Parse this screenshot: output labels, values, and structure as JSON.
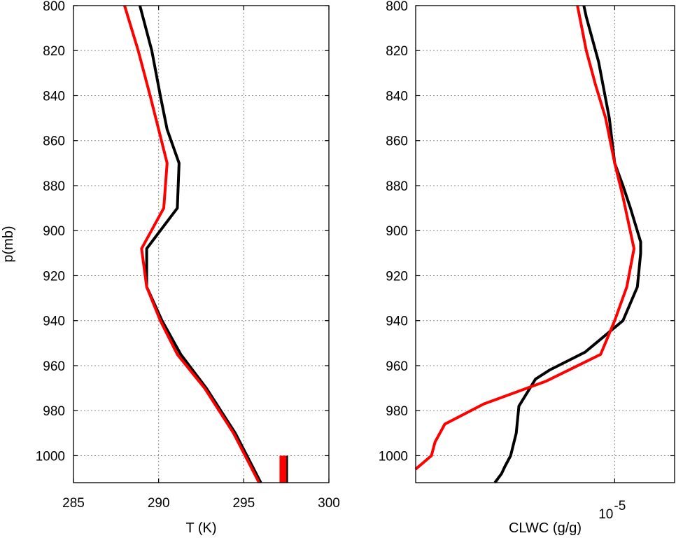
{
  "chart_data": [
    {
      "type": "line",
      "title": "",
      "xlabel": "T (K)",
      "ylabel": "p(mb)",
      "xlim": [
        285,
        300
      ],
      "ylim": [
        800,
        1012
      ],
      "y_reversed": true,
      "grid": true,
      "xticks": [
        285,
        290,
        295,
        300
      ],
      "xtick_labels": [
        "285",
        "290",
        "295",
        "300"
      ],
      "yticks": [
        800,
        820,
        840,
        860,
        880,
        900,
        920,
        940,
        960,
        980,
        1000
      ],
      "ytick_labels": [
        "800",
        "820",
        "840",
        "860",
        "880",
        "900",
        "920",
        "940",
        "960",
        "980",
        "1000"
      ],
      "series": [
        {
          "color": "#000000",
          "points": [
            [
              288.9,
              800
            ],
            [
              289.6,
              820
            ],
            [
              290.1,
              840
            ],
            [
              290.5,
              855
            ],
            [
              291.2,
              870
            ],
            [
              291.1,
              890
            ],
            [
              289.3,
              908
            ],
            [
              289.3,
              925
            ],
            [
              290.2,
              940
            ],
            [
              291.3,
              955
            ],
            [
              292.8,
              970
            ],
            [
              294.5,
              990
            ],
            [
              296.0,
              1012
            ]
          ]
        },
        {
          "color": "#ff0000",
          "points": [
            [
              288.0,
              800
            ],
            [
              288.8,
              820
            ],
            [
              289.5,
              840
            ],
            [
              290.0,
              855
            ],
            [
              290.5,
              870
            ],
            [
              290.3,
              890
            ],
            [
              289.0,
              908
            ],
            [
              289.3,
              925
            ],
            [
              290.1,
              940
            ],
            [
              291.1,
              955
            ],
            [
              292.7,
              970
            ],
            [
              294.4,
              990
            ],
            [
              295.9,
              1012
            ]
          ]
        }
      ],
      "bars": [
        {
          "color": "#ff0000",
          "x_range": [
            297.1,
            297.5
          ],
          "y_range": [
            1000,
            1012
          ]
        },
        {
          "color": "#000000",
          "x_range": [
            297.5,
            297.6
          ],
          "y_range": [
            1000,
            1012
          ]
        }
      ]
    },
    {
      "type": "line",
      "title": "",
      "xlabel": "CLWC (g/g)",
      "ylabel": "",
      "xscale": "log",
      "xlim": [
        1e-06,
        2e-05
      ],
      "ylim": [
        800,
        1012
      ],
      "y_reversed": true,
      "grid": true,
      "xticks": [
        1e-05
      ],
      "xtick_labels": [
        {
          "base": "10",
          "exp": "-5"
        }
      ],
      "yticks": [
        800,
        820,
        840,
        860,
        880,
        900,
        920,
        940,
        960,
        980,
        1000
      ],
      "ytick_labels": [
        "800",
        "820",
        "840",
        "860",
        "880",
        "900",
        "920",
        "940",
        "960",
        "980",
        "1000"
      ],
      "series": [
        {
          "color": "#000000",
          "points": [
            [
              7e-06,
              800
            ],
            [
              7.2e-06,
              805
            ],
            [
              8.3e-06,
              825
            ],
            [
              9.4e-06,
              850
            ],
            [
              1e-05,
              870
            ],
            [
              1.1e-05,
              880
            ],
            [
              1.2e-05,
              890
            ],
            [
              1.35e-05,
              905
            ],
            [
              1.35e-05,
              910
            ],
            [
              1.3e-05,
              925
            ],
            [
              1.1e-05,
              940
            ],
            [
              7.1e-06,
              954
            ],
            [
              4.7e-06,
              962
            ],
            [
              4e-06,
              966
            ],
            [
              3.3e-06,
              978
            ],
            [
              3.2e-06,
              990
            ],
            [
              3e-06,
              1000
            ],
            [
              2.8e-06,
              1005
            ],
            [
              2.7e-06,
              1008
            ],
            [
              2.5e-06,
              1012
            ]
          ]
        },
        {
          "color": "#ff0000",
          "points": [
            [
              6.5e-06,
              800
            ],
            [
              7.2e-06,
              820
            ],
            [
              8e-06,
              835
            ],
            [
              9e-06,
              850
            ],
            [
              1e-05,
              870
            ],
            [
              1.1e-05,
              885
            ],
            [
              1.25e-05,
              908
            ],
            [
              1.15e-05,
              925
            ],
            [
              1e-05,
              940
            ],
            [
              8.5e-06,
              955
            ],
            [
              4.5e-06,
              967
            ],
            [
              2.2e-06,
              977
            ],
            [
              1.4e-06,
              986
            ],
            [
              1.25e-06,
              994
            ],
            [
              1.2e-06,
              1000
            ],
            [
              1e-06,
              1006
            ]
          ]
        }
      ]
    }
  ]
}
